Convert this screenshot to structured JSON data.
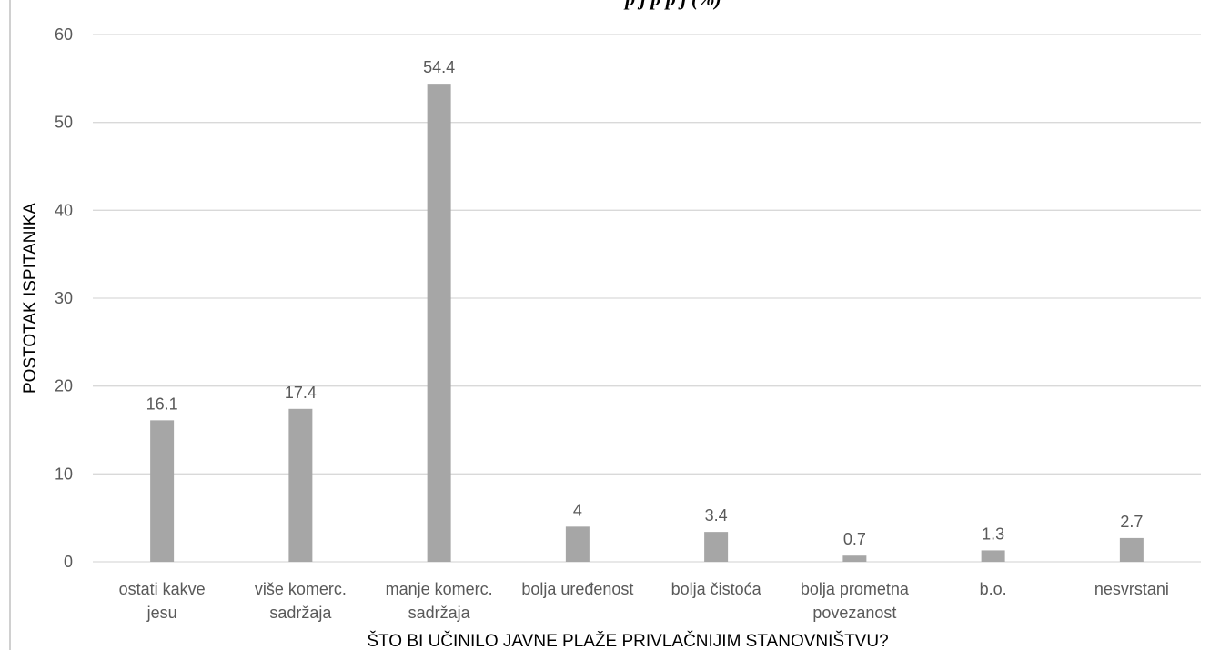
{
  "chart_data": {
    "type": "bar",
    "title": "p      j   p p     j      (%)",
    "xlabel": "ŠTO BI UČINILO JAVNE PLAŽE PRIVLAČNIJIM STANOVNIŠTVU?",
    "ylabel": "POSTOTAK ISPITANIKA",
    "categories": [
      [
        "ostati kakve",
        "jesu"
      ],
      [
        "više komerc.",
        "sadržaja"
      ],
      [
        "manje komerc.",
        "sadržaja"
      ],
      [
        "bolja uređenost"
      ],
      [
        "bolja čistoća"
      ],
      [
        "bolja prometna",
        "povezanost"
      ],
      [
        "b.o."
      ],
      [
        "nesvrstani"
      ]
    ],
    "values": [
      16.1,
      17.4,
      54.4,
      4,
      3.4,
      0.7,
      1.3,
      2.7
    ],
    "value_labels": [
      "16.1",
      "17.4",
      "54.4",
      "4",
      "3.4",
      "0.7",
      "1.3",
      "2.7"
    ],
    "ylim": [
      0,
      60
    ],
    "yticks": [
      0,
      10,
      20,
      30,
      40,
      50,
      60
    ],
    "grid": true,
    "bar_color": "#a6a6a6",
    "grid_color": "#d9d9d9",
    "text_color": "#595959"
  }
}
